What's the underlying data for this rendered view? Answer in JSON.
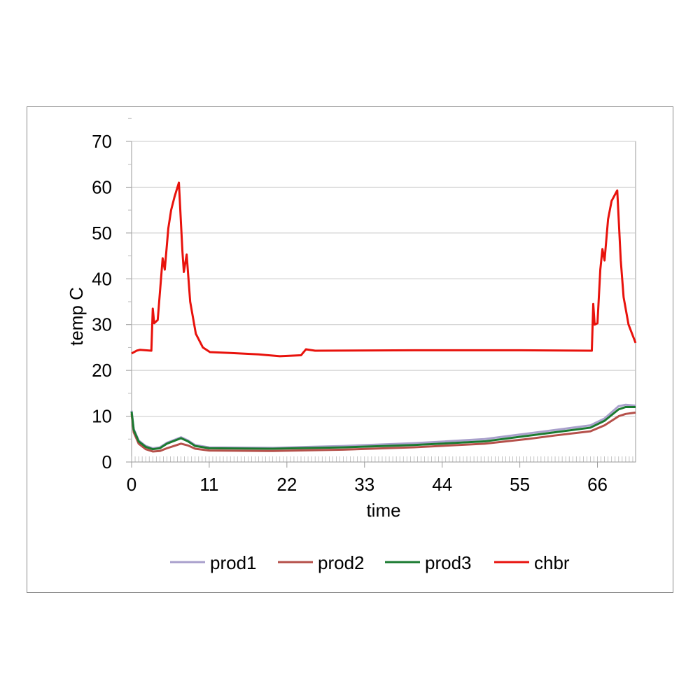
{
  "chart_data": {
    "type": "line",
    "xlabel": "time",
    "ylabel": "temp C",
    "xlim": [
      0,
      71.4
    ],
    "ylim": [
      0,
      70
    ],
    "xticks": [
      0,
      11,
      22,
      33,
      44,
      55,
      66
    ],
    "yticks": [
      0,
      10,
      20,
      30,
      40,
      50,
      60,
      70
    ],
    "grid": "horizontal",
    "legend": "bottom",
    "series": [
      {
        "name": "prod1",
        "color": "#a9a0cc",
        "points": [
          [
            0,
            11.2
          ],
          [
            0.3,
            7.2
          ],
          [
            1,
            4.7
          ],
          [
            2,
            3.5
          ],
          [
            3,
            3
          ],
          [
            4,
            3.2
          ],
          [
            5,
            4.2
          ],
          [
            7,
            5.4
          ],
          [
            8,
            4.7
          ],
          [
            9,
            3.7
          ],
          [
            11,
            3.2
          ],
          [
            20,
            3.1
          ],
          [
            30,
            3.5
          ],
          [
            40,
            4.1
          ],
          [
            50,
            5
          ],
          [
            55,
            6
          ],
          [
            60,
            7
          ],
          [
            65,
            8
          ],
          [
            67,
            9.5
          ],
          [
            69,
            12.2
          ],
          [
            70,
            12.5
          ],
          [
            71.4,
            12.3
          ]
        ]
      },
      {
        "name": "prod2",
        "color": "#b5504a",
        "points": [
          [
            0,
            10.5
          ],
          [
            0.3,
            6.5
          ],
          [
            1,
            4
          ],
          [
            2,
            2.8
          ],
          [
            3,
            2.3
          ],
          [
            4,
            2.4
          ],
          [
            5,
            3
          ],
          [
            7,
            4
          ],
          [
            8,
            3.6
          ],
          [
            9,
            2.9
          ],
          [
            11,
            2.5
          ],
          [
            20,
            2.4
          ],
          [
            30,
            2.7
          ],
          [
            40,
            3.2
          ],
          [
            50,
            4
          ],
          [
            56,
            5
          ],
          [
            60,
            5.8
          ],
          [
            65,
            6.7
          ],
          [
            67,
            8
          ],
          [
            69,
            10
          ],
          [
            70,
            10.5
          ],
          [
            71.4,
            10.8
          ]
        ]
      },
      {
        "name": "prod3",
        "color": "#1a7a30",
        "points": [
          [
            0,
            11
          ],
          [
            0.3,
            7
          ],
          [
            1,
            4.5
          ],
          [
            2,
            3.3
          ],
          [
            3,
            2.8
          ],
          [
            4,
            3
          ],
          [
            5,
            4
          ],
          [
            7,
            5.2
          ],
          [
            8,
            4.5
          ],
          [
            9,
            3.5
          ],
          [
            11,
            3
          ],
          [
            20,
            2.9
          ],
          [
            30,
            3.2
          ],
          [
            40,
            3.7
          ],
          [
            50,
            4.5
          ],
          [
            55,
            5.5
          ],
          [
            60,
            6.5
          ],
          [
            65,
            7.5
          ],
          [
            67,
            9
          ],
          [
            69,
            11.5
          ],
          [
            70,
            12
          ],
          [
            71.4,
            12
          ]
        ]
      },
      {
        "name": "chbr",
        "color": "#e8120c",
        "points": [
          [
            0,
            23.7
          ],
          [
            0.7,
            24.3
          ],
          [
            1.2,
            24.5
          ],
          [
            2.8,
            24.3
          ],
          [
            3,
            33.5
          ],
          [
            3.2,
            30.3
          ],
          [
            3.7,
            31
          ],
          [
            4.4,
            44.5
          ],
          [
            4.7,
            42
          ],
          [
            5.2,
            51
          ],
          [
            5.6,
            55
          ],
          [
            6.1,
            58
          ],
          [
            6.7,
            61
          ],
          [
            7.2,
            46
          ],
          [
            7.4,
            41.5
          ],
          [
            7.8,
            45.3
          ],
          [
            8.3,
            35
          ],
          [
            9.1,
            28
          ],
          [
            10.1,
            25
          ],
          [
            11.1,
            24
          ],
          [
            14,
            23.8
          ],
          [
            18,
            23.5
          ],
          [
            21,
            23.1
          ],
          [
            24,
            23.3
          ],
          [
            24.7,
            24.6
          ],
          [
            26,
            24.3
          ],
          [
            40,
            24.4
          ],
          [
            55,
            24.4
          ],
          [
            65.2,
            24.3
          ],
          [
            65.4,
            34.5
          ],
          [
            65.6,
            30
          ],
          [
            66,
            30.3
          ],
          [
            66.4,
            42
          ],
          [
            66.7,
            46.5
          ],
          [
            67,
            44
          ],
          [
            67.5,
            53
          ],
          [
            68,
            57
          ],
          [
            68.8,
            59.3
          ],
          [
            69.3,
            44
          ],
          [
            69.7,
            36
          ],
          [
            70.4,
            30
          ],
          [
            71.4,
            26
          ]
        ]
      }
    ]
  }
}
